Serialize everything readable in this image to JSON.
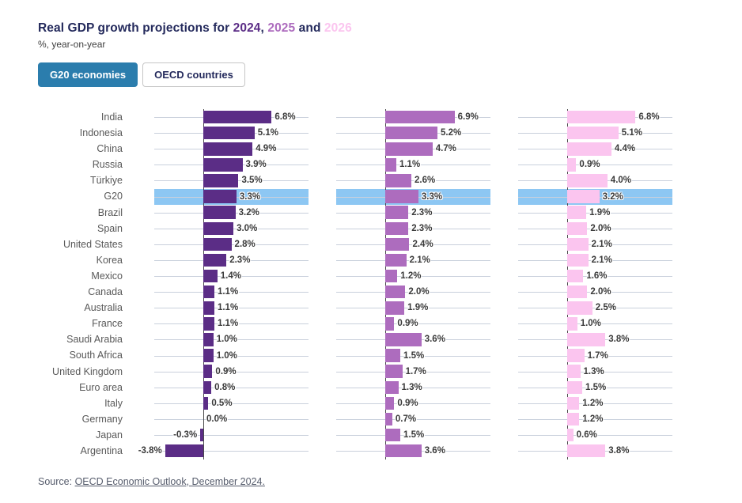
{
  "title": {
    "prefix": "Real GDP growth projections for ",
    "comma": ", ",
    "and": " and ",
    "years": [
      {
        "label": "2024",
        "color": "#5b2d86"
      },
      {
        "label": "2025",
        "color": "#ad6cbe"
      },
      {
        "label": "2026",
        "color": "#fbc5ef"
      }
    ],
    "base_color": "#242a5c"
  },
  "subtitle": "%, year-on-year",
  "tabs": [
    {
      "label": "G20 economies",
      "active": true
    },
    {
      "label": "OECD countries",
      "active": false
    }
  ],
  "tab_active_color": "#2b7dad",
  "source": {
    "prefix": "Source: ",
    "link": "OECD Economic Outlook, December 2024."
  },
  "chart_data": {
    "type": "bar",
    "orientation": "horizontal",
    "title": "Real GDP growth projections for 2024, 2025 and 2026",
    "subtitle": "%, year-on-year",
    "xlabel": "",
    "ylabel": "",
    "xlim": [
      -4.3,
      7.5
    ],
    "grid": true,
    "legend_position": "encoded-in-title-colors",
    "value_format": "0.0%",
    "highlighted_category": "G20",
    "highlight_color": "#8dc7f3",
    "gridline_color": "#c9d0dc",
    "axis_line_color": "#4a4a4a",
    "categories": [
      "India",
      "Indonesia",
      "China",
      "Russia",
      "Türkiye",
      "G20",
      "Brazil",
      "Spain",
      "United States",
      "Korea",
      "Mexico",
      "Canada",
      "Australia",
      "France",
      "Saudi Arabia",
      "South Africa",
      "United Kingdom",
      "Euro area",
      "Italy",
      "Germany",
      "Japan",
      "Argentina"
    ],
    "series": [
      {
        "name": "2024",
        "color": "#5b2d86",
        "values": [
          6.8,
          5.1,
          4.9,
          3.9,
          3.5,
          3.3,
          3.2,
          3.0,
          2.8,
          2.3,
          1.4,
          1.1,
          1.1,
          1.1,
          1.0,
          1.0,
          0.9,
          0.8,
          0.5,
          0.0,
          -0.3,
          -3.8
        ]
      },
      {
        "name": "2025",
        "color": "#ad6cbe",
        "values": [
          6.9,
          5.2,
          4.7,
          1.1,
          2.6,
          3.3,
          2.3,
          2.3,
          2.4,
          2.1,
          1.2,
          2.0,
          1.9,
          0.9,
          3.6,
          1.5,
          1.7,
          1.3,
          0.9,
          0.7,
          1.5,
          3.6
        ]
      },
      {
        "name": "2026",
        "color": "#fbc5ef",
        "values": [
          6.8,
          5.1,
          4.4,
          0.9,
          4.0,
          3.2,
          1.9,
          2.0,
          2.1,
          2.1,
          1.6,
          2.0,
          2.5,
          1.0,
          3.8,
          1.7,
          1.3,
          1.5,
          1.2,
          1.2,
          0.6,
          3.8
        ]
      }
    ]
  }
}
